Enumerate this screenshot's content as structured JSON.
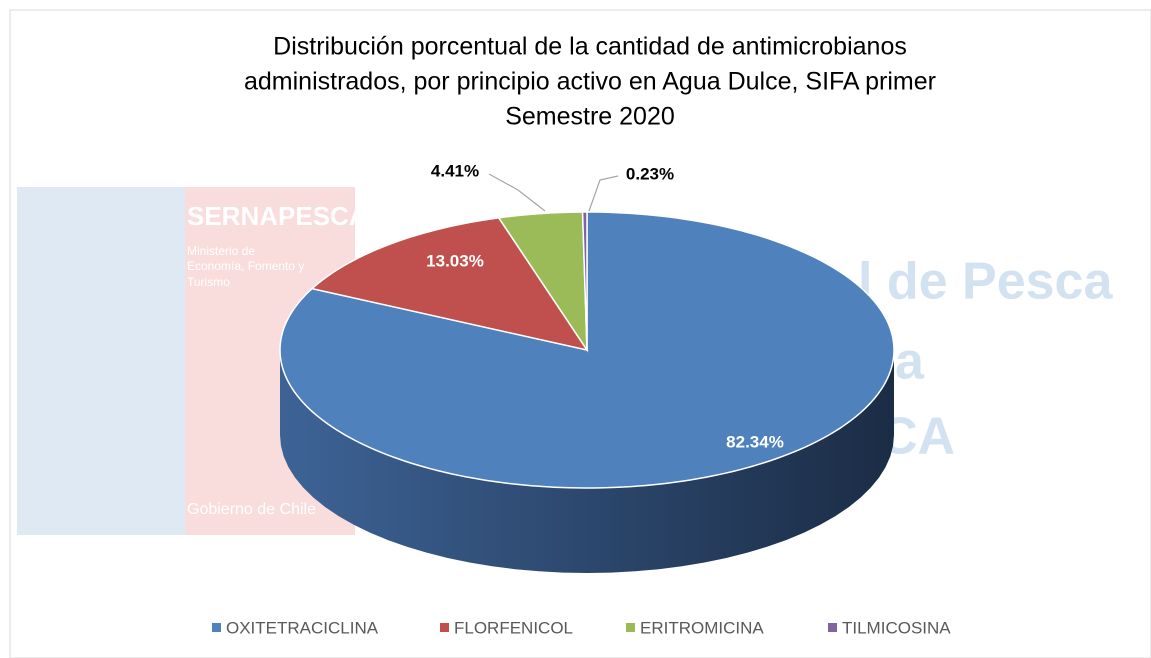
{
  "chart_data": {
    "type": "pie3d",
    "title": [
      "Distribución porcentual de la cantidad de antimicrobianos",
      "administrados, por principio activo en Agua Dulce, SIFA primer",
      "Semestre 2020"
    ],
    "categories": [
      "OXITETRACICLINA",
      "FLORFENICOL",
      "ERITROMICINA",
      "TILMICOSINA"
    ],
    "values": [
      82.34,
      13.03,
      4.41,
      0.23
    ],
    "value_labels": [
      "82.34%",
      "13.03%",
      "4.41%",
      "0.23%"
    ],
    "colors": [
      "#4f81bd",
      "#c0504d",
      "#9bbb59",
      "#8064a2"
    ],
    "legend": "bottom",
    "watermark": [
      "SERNAPESCA",
      "Ministerio de",
      "Economía, Fomento y",
      "Turismo",
      "Gobierno de Chile",
      "l de Pesca",
      "a",
      "CA"
    ]
  }
}
